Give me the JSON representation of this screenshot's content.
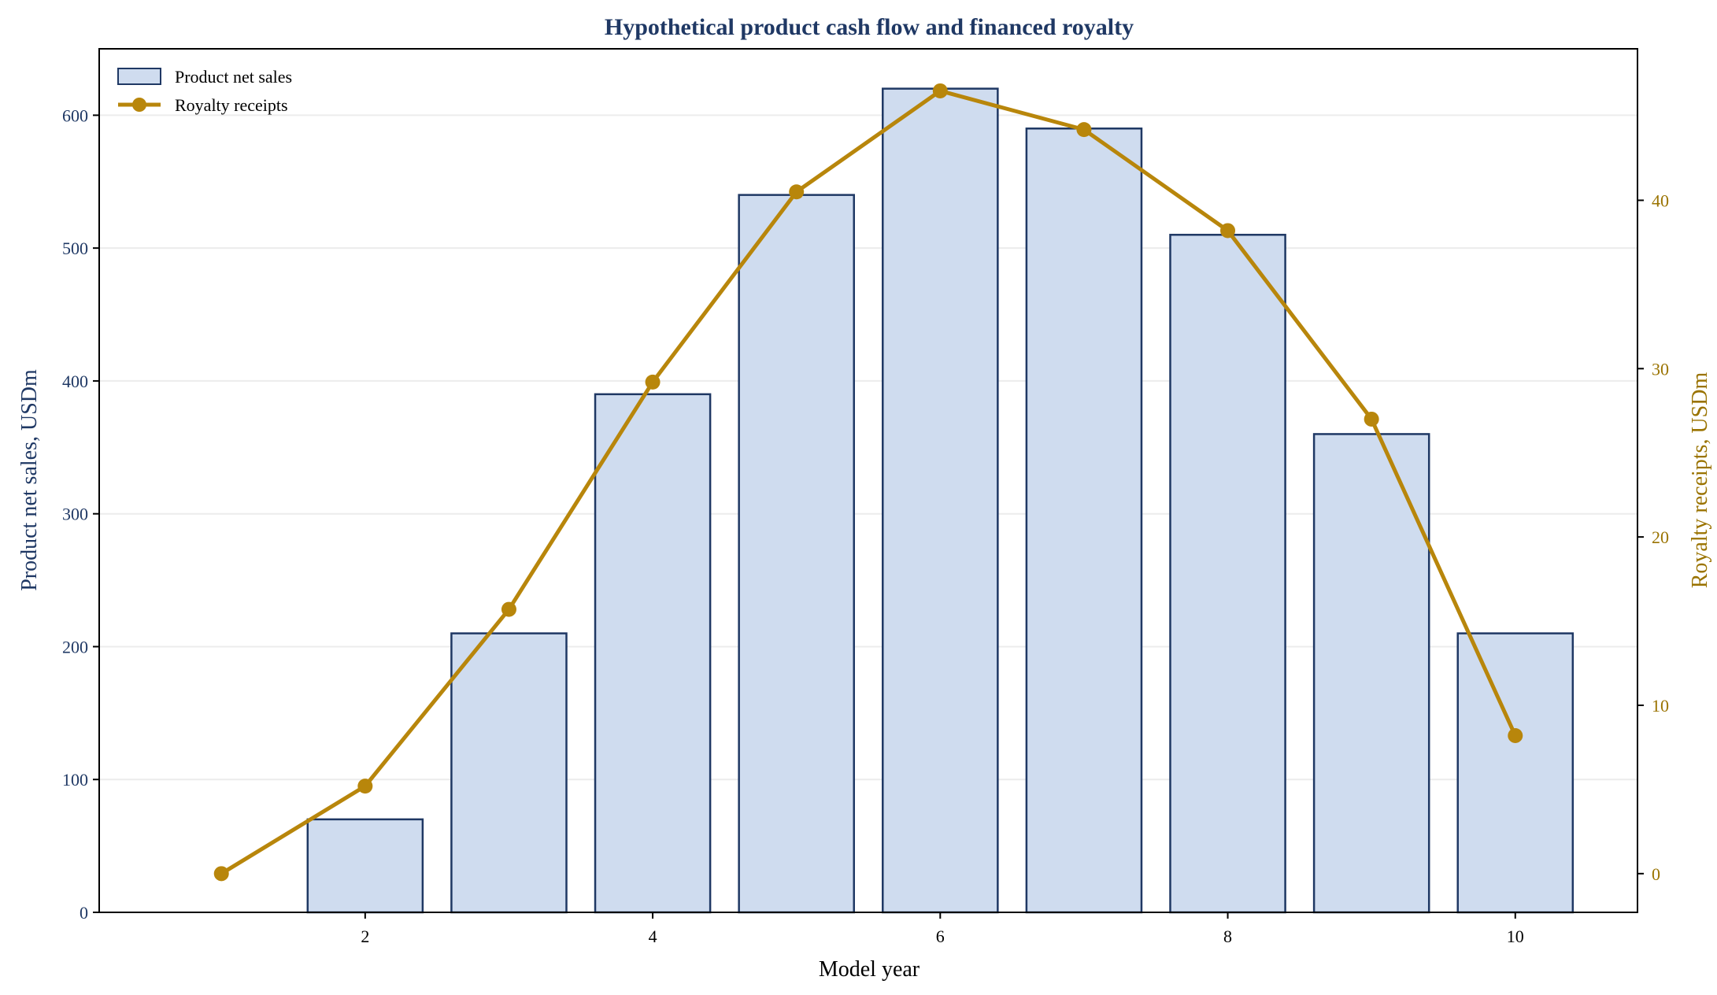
{
  "chart_data": {
    "type": "bar",
    "title": "Hypothetical product cash flow and financed royalty",
    "xlabel": "Model year",
    "ylabel_left": "Product net sales, USDm",
    "ylabel_right": "Royalty receipts, USDm",
    "x": [
      1,
      2,
      3,
      4,
      5,
      6,
      7,
      8,
      9,
      10
    ],
    "xlim": [
      0.15,
      10.85
    ],
    "x_ticks": [
      "2",
      "4",
      "6",
      "8",
      "10"
    ],
    "ylim_left": [
      0,
      650
    ],
    "y_ticks_left": [
      "0",
      "100",
      "200",
      "300",
      "400",
      "500",
      "600"
    ],
    "ylim_right": [
      -2.3,
      49
    ],
    "y_ticks_right": [
      "0",
      "10",
      "20",
      "30",
      "40"
    ],
    "grid": "horizontal, left axis",
    "legend_position": "upper-left",
    "series": [
      {
        "name": "Product net sales",
        "kind": "bar",
        "axis": "left",
        "values": [
          0,
          70,
          210,
          390,
          540,
          620,
          590,
          510,
          360,
          210
        ]
      },
      {
        "name": "Royalty receipts",
        "kind": "line",
        "axis": "right",
        "values": [
          0,
          5.2,
          15.7,
          29.2,
          40.5,
          46.5,
          44.2,
          38.2,
          27.0,
          8.2
        ]
      }
    ],
    "colors": {
      "title": "#1f3864",
      "bar_fill": "#cfdcef",
      "bar_edge": "#1f3864",
      "left_axis": "#1f3864",
      "line": "#b8860b",
      "right_axis": "#9a7300",
      "grid": "#ececec",
      "frame": "#000000"
    }
  }
}
